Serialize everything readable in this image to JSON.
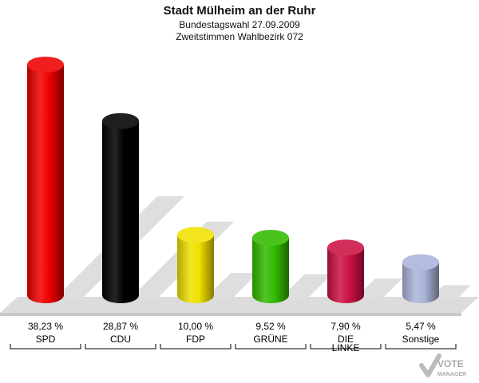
{
  "header": {
    "title": "Stadt Mülheim an der Ruhr",
    "subtitle1": "Bundestagswahl 27.09.2009",
    "subtitle2": "Zweitstimmen Wahlbezirk 072"
  },
  "logo": {
    "text1": "VOTE",
    "text2": "MANAGER",
    "icon": "checkmark-icon"
  },
  "chart_data": {
    "type": "bar",
    "title": "Stadt Mülheim an der Ruhr",
    "categories": [
      "SPD",
      "CDU",
      "FDP",
      "GRÜNE",
      "DIE LINKE",
      "Sonstige"
    ],
    "category_lines": [
      [
        "SPD"
      ],
      [
        "CDU"
      ],
      [
        "FDP"
      ],
      [
        "GRÜNE"
      ],
      [
        "DIE",
        "LINKE"
      ],
      [
        "Sonstige"
      ]
    ],
    "values": [
      38.23,
      28.87,
      10.0,
      9.52,
      7.9,
      5.47
    ],
    "value_labels": [
      "38,23 %",
      "28,87 %",
      "10,00 %",
      "9,52 %",
      "7,90 %",
      "5,47 %"
    ],
    "colors": [
      "#ee0000",
      "#000000",
      "#f0e000",
      "#33bb00",
      "#cc1144",
      "#aab4d8"
    ],
    "ylim": [
      0,
      40
    ],
    "grid": false
  }
}
